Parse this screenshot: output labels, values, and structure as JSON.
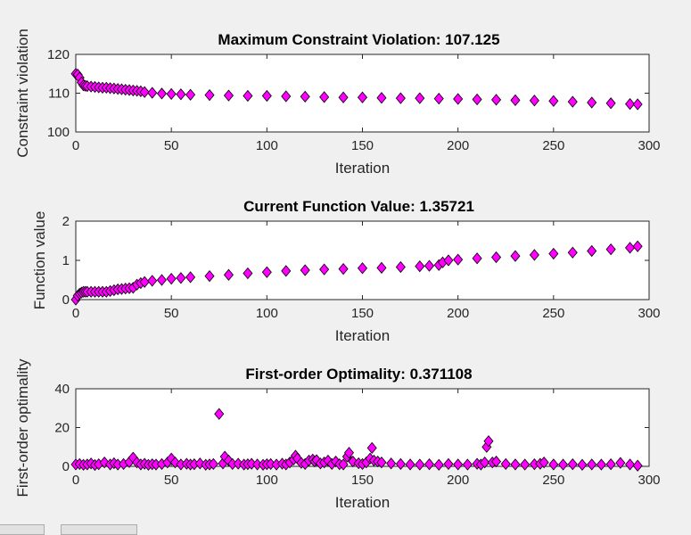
{
  "colors": {
    "marker_fill": "#ff00ff",
    "marker_stroke": "#000000",
    "axes_bg": "#ffffff",
    "figure_bg": "#f0f0f0"
  },
  "chart_data": [
    {
      "type": "scatter",
      "title": "Maximum Constraint Violation: 107.125",
      "xlabel": "Iteration",
      "ylabel": "Constraint violation",
      "xlim": [
        0,
        300
      ],
      "ylim": [
        100,
        120
      ],
      "xticks": [
        "0",
        "50",
        "100",
        "150",
        "200",
        "250",
        "300"
      ],
      "yticks": [
        "100",
        "110",
        "120"
      ],
      "marker": "diamond",
      "series": [
        {
          "x": [
            0,
            1,
            2,
            3,
            4,
            5,
            6,
            8,
            10,
            12,
            14,
            16,
            18,
            20,
            22,
            24,
            26,
            28,
            30,
            32,
            34,
            36,
            40,
            45,
            50,
            55,
            60,
            70,
            80,
            90,
            100,
            110,
            120,
            130,
            140,
            150,
            160,
            170,
            180,
            190,
            200,
            210,
            220,
            230,
            240,
            250,
            260,
            270,
            280,
            290,
            294
          ],
          "y": [
            115.0,
            114.8,
            114.0,
            112.8,
            112.0,
            111.9,
            111.8,
            111.7,
            111.6,
            111.5,
            111.4,
            111.4,
            111.3,
            111.2,
            111.1,
            111.0,
            110.9,
            110.8,
            110.7,
            110.6,
            110.5,
            110.3,
            110.1,
            109.9,
            109.8,
            109.7,
            109.6,
            109.5,
            109.4,
            109.3,
            109.3,
            109.2,
            109.1,
            109.0,
            108.9,
            108.9,
            108.8,
            108.7,
            108.7,
            108.6,
            108.5,
            108.4,
            108.3,
            108.2,
            108.1,
            108.0,
            107.8,
            107.6,
            107.4,
            107.2,
            107.125
          ]
        }
      ]
    },
    {
      "type": "scatter",
      "title": "Current Function Value: 1.35721",
      "xlabel": "Iteration",
      "ylabel": "Function value",
      "xlim": [
        0,
        300
      ],
      "ylim": [
        0,
        2
      ],
      "xticks": [
        "0",
        "50",
        "100",
        "150",
        "200",
        "250",
        "300"
      ],
      "yticks": [
        "0",
        "1",
        "2"
      ],
      "marker": "diamond",
      "series": [
        {
          "x": [
            0,
            1,
            2,
            3,
            4,
            5,
            6,
            8,
            10,
            12,
            14,
            16,
            18,
            20,
            22,
            24,
            26,
            28,
            30,
            32,
            34,
            36,
            40,
            45,
            50,
            55,
            60,
            70,
            80,
            90,
            100,
            110,
            120,
            130,
            140,
            150,
            160,
            170,
            180,
            185,
            190,
            192,
            195,
            200,
            210,
            220,
            230,
            240,
            250,
            260,
            270,
            280,
            290,
            294
          ],
          "y": [
            0.0,
            0.1,
            0.15,
            0.18,
            0.2,
            0.2,
            0.2,
            0.2,
            0.2,
            0.2,
            0.2,
            0.2,
            0.22,
            0.24,
            0.26,
            0.27,
            0.28,
            0.29,
            0.3,
            0.38,
            0.42,
            0.45,
            0.48,
            0.5,
            0.53,
            0.55,
            0.57,
            0.6,
            0.63,
            0.67,
            0.7,
            0.73,
            0.75,
            0.77,
            0.78,
            0.8,
            0.81,
            0.83,
            0.85,
            0.86,
            0.88,
            0.95,
            1.0,
            1.02,
            1.05,
            1.08,
            1.11,
            1.14,
            1.17,
            1.2,
            1.24,
            1.28,
            1.32,
            1.35721
          ]
        }
      ]
    },
    {
      "type": "scatter",
      "title": "First-order Optimality: 0.371108",
      "xlabel": "Iteration",
      "ylabel": "First-order optimality",
      "xlim": [
        0,
        300
      ],
      "ylim": [
        0,
        40
      ],
      "xticks": [
        "0",
        "50",
        "100",
        "150",
        "200",
        "250",
        "300"
      ],
      "yticks": [
        "0",
        "20",
        "40"
      ],
      "marker": "diamond",
      "series": [
        {
          "x": [
            0,
            2,
            4,
            6,
            8,
            10,
            12,
            15,
            18,
            20,
            22,
            25,
            28,
            30,
            32,
            34,
            36,
            38,
            40,
            42,
            45,
            48,
            50,
            52,
            55,
            58,
            60,
            62,
            65,
            68,
            70,
            72,
            75,
            77,
            78,
            80,
            82,
            85,
            88,
            90,
            92,
            95,
            98,
            100,
            102,
            105,
            108,
            110,
            112,
            114,
            115,
            116,
            118,
            120,
            122,
            124,
            125,
            126,
            128,
            130,
            132,
            134,
            136,
            138,
            140,
            142,
            143,
            145,
            148,
            150,
            152,
            154,
            155,
            156,
            158,
            160,
            165,
            170,
            175,
            180,
            185,
            190,
            195,
            200,
            205,
            210,
            212,
            214,
            215,
            216,
            218,
            220,
            225,
            230,
            235,
            240,
            243,
            245,
            250,
            255,
            260,
            265,
            270,
            275,
            280,
            285,
            290,
            294
          ],
          "y": [
            1,
            1.2,
            0.8,
            1,
            1.5,
            0.7,
            1.1,
            2,
            1,
            1.6,
            0.9,
            1.2,
            2.2,
            4.5,
            2,
            1,
            1.3,
            0.8,
            1.1,
            0.9,
            1.2,
            2,
            4,
            2,
            1,
            1.3,
            0.9,
            1.1,
            1.5,
            0.8,
            1,
            1.2,
            27,
            1.5,
            5,
            3,
            1.2,
            1.4,
            0.9,
            1.1,
            1.3,
            1,
            0.8,
            1.1,
            1.2,
            0.9,
            1.4,
            1,
            2,
            3.5,
            5.5,
            4,
            1.8,
            1.2,
            3,
            3.5,
            2.5,
            3.2,
            1.5,
            2,
            3,
            1.2,
            2.5,
            1.1,
            1,
            5,
            7,
            2.5,
            1.6,
            1.2,
            2,
            4,
            9.5,
            3,
            2.5,
            2,
            1.5,
            1.2,
            1,
            0.9,
            1.1,
            0.8,
            1.2,
            1,
            0.9,
            1.3,
            0.9,
            2,
            10,
            13,
            2,
            2.5,
            1.2,
            1,
            0.9,
            1.1,
            1.3,
            2,
            1,
            0.9,
            1.1,
            0.8,
            1,
            0.9,
            1.1,
            1.8,
            1,
            0.371108
          ]
        }
      ]
    }
  ]
}
